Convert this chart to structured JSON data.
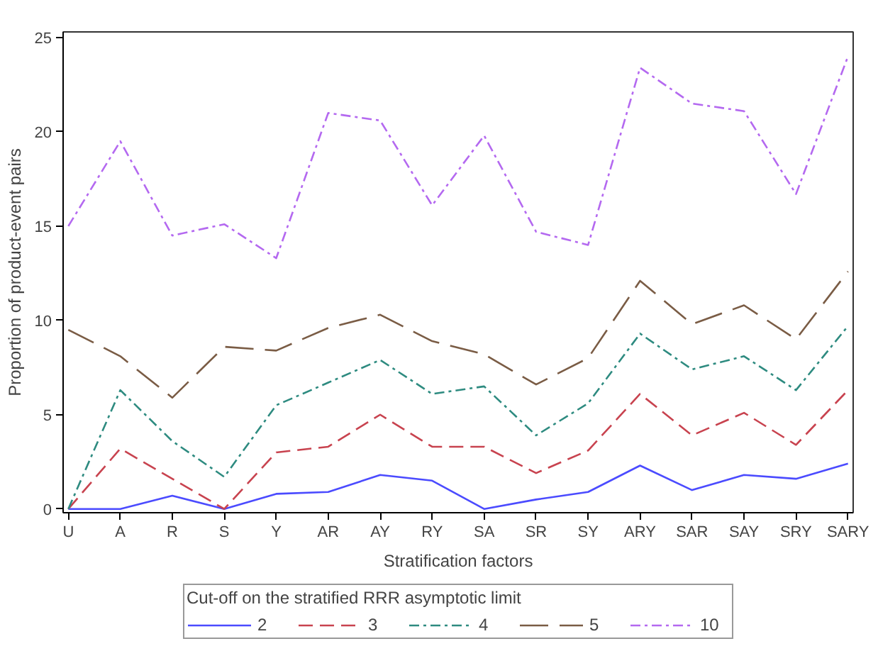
{
  "chart_data": {
    "type": "line",
    "xlabel": "Stratification factors",
    "ylabel": "Proportion of product-event pairs",
    "legend_title": "Cut-off on the stratified RRR asymptotic limit",
    "legend": "bottom",
    "grid": false,
    "categories": [
      "U",
      "A",
      "R",
      "S",
      "Y",
      "AR",
      "AY",
      "RY",
      "SA",
      "SR",
      "SY",
      "ARY",
      "SAR",
      "SAY",
      "SRY",
      "SARY"
    ],
    "ylim": [
      -0.2,
      25.3
    ],
    "yticks": [
      0,
      5,
      10,
      15,
      20,
      25
    ],
    "series": [
      {
        "name": "2",
        "color": "#4b4bff",
        "line_style": "solid",
        "values": [
          0,
          0,
          0.7,
          0,
          0.8,
          0.9,
          1.8,
          1.5,
          0,
          0.5,
          0.9,
          2.3,
          1.0,
          1.8,
          1.6,
          2.4
        ]
      },
      {
        "name": "3",
        "color": "#c8434f",
        "line_style": "dashed",
        "values": [
          0,
          3.2,
          1.6,
          0,
          3.0,
          3.3,
          5.0,
          3.3,
          3.3,
          1.9,
          3.1,
          6.1,
          3.9,
          5.1,
          3.4,
          6.3
        ]
      },
      {
        "name": "4",
        "color": "#2e8b80",
        "line_style": "dashdot",
        "values": [
          0,
          6.3,
          3.6,
          1.7,
          5.5,
          6.7,
          7.9,
          6.1,
          6.5,
          3.9,
          5.6,
          9.3,
          7.4,
          8.1,
          6.3,
          9.7
        ]
      },
      {
        "name": "5",
        "color": "#7a5c45",
        "line_style": "longdash",
        "values": [
          9.5,
          8.1,
          5.9,
          8.6,
          8.4,
          9.6,
          10.3,
          8.9,
          8.2,
          6.6,
          8.0,
          12.1,
          9.8,
          10.8,
          9.0,
          12.6
        ]
      },
      {
        "name": "10",
        "color": "#b469f0",
        "line_style": "dashdot",
        "values": [
          15.0,
          19.5,
          14.5,
          15.1,
          13.3,
          21.0,
          20.6,
          16.1,
          19.8,
          14.7,
          14.0,
          23.4,
          21.5,
          21.1,
          16.7,
          24.0
        ]
      }
    ]
  }
}
